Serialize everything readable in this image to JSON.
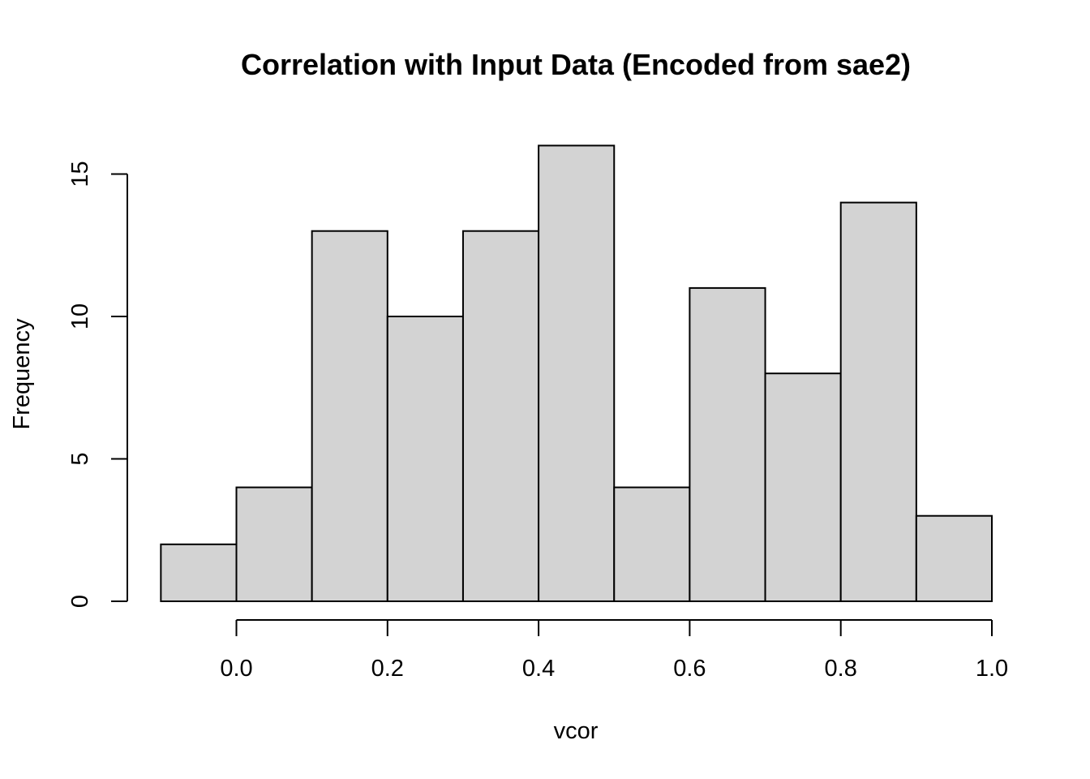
{
  "chart_data": {
    "type": "bar",
    "title": "Correlation with Input Data (Encoded from sae2)",
    "xlabel": "vcor",
    "ylabel": "Frequency",
    "bins": [
      {
        "from": -0.1,
        "to": 0.0,
        "count": 2
      },
      {
        "from": 0.0,
        "to": 0.1,
        "count": 4
      },
      {
        "from": 0.1,
        "to": 0.2,
        "count": 13
      },
      {
        "from": 0.2,
        "to": 0.3,
        "count": 10
      },
      {
        "from": 0.3,
        "to": 0.4,
        "count": 13
      },
      {
        "from": 0.4,
        "to": 0.5,
        "count": 16
      },
      {
        "from": 0.5,
        "to": 0.6,
        "count": 4
      },
      {
        "from": 0.6,
        "to": 0.7,
        "count": 11
      },
      {
        "from": 0.7,
        "to": 0.8,
        "count": 8
      },
      {
        "from": 0.8,
        "to": 0.9,
        "count": 14
      },
      {
        "from": 0.9,
        "to": 1.0,
        "count": 3
      }
    ],
    "x_ticks": [
      0.0,
      0.2,
      0.4,
      0.6,
      0.8,
      1.0
    ],
    "x_tick_labels": [
      "0.0",
      "0.2",
      "0.4",
      "0.6",
      "0.8",
      "1.0"
    ],
    "y_ticks": [
      0,
      5,
      10,
      15
    ],
    "y_tick_labels": [
      "0",
      "5",
      "10",
      "15"
    ],
    "xlim": [
      -0.1,
      1.0
    ],
    "ylim": [
      0,
      16
    ],
    "grid": false,
    "colors": {
      "bar_fill": "#d3d3d3",
      "bar_stroke": "#000000"
    }
  }
}
